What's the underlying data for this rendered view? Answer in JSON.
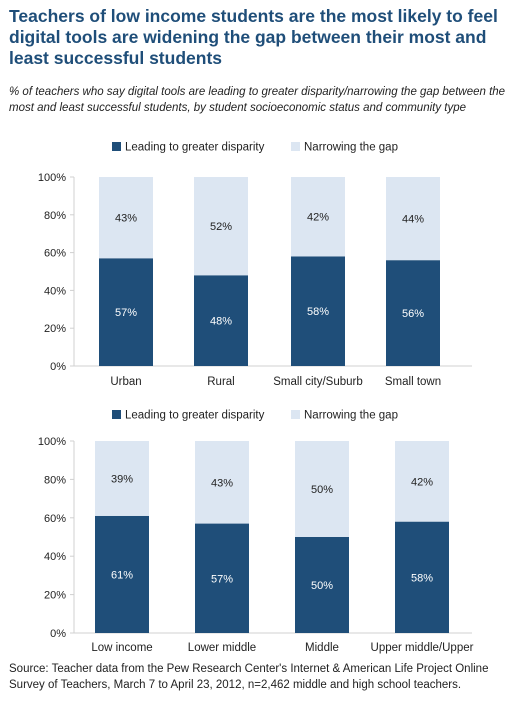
{
  "title": "Teachers of low income students are the most likely to feel digital tools are widening the gap between their most and least successful students",
  "subtitle": "% of teachers who say digital tools are leading to greater disparity/narrowing the gap between the most and least successful students, by student socioeconomic status and community type",
  "source": "Source: Teacher data from the Pew Research Center's Internet & American Life Project Online Survey of Teachers, March 7 to April 23, 2012, n=2,462 middle and high school teachers.",
  "colors": {
    "disparity": "#1f4e79",
    "narrowing": "#dce6f2"
  },
  "chart_data": [
    {
      "type": "bar",
      "stacked": true,
      "categories": [
        "Urban",
        "Rural",
        "Small city/Suburb",
        "Small town"
      ],
      "series": [
        {
          "name": "Leading to greater disparity",
          "values": [
            57,
            48,
            58,
            56
          ]
        },
        {
          "name": "Narrowing the gap",
          "values": [
            43,
            52,
            42,
            44
          ]
        }
      ],
      "yticks": [
        "0%",
        "20%",
        "40%",
        "60%",
        "80%",
        "100%"
      ],
      "ylim": [
        0,
        100
      ],
      "legend": "top"
    },
    {
      "type": "bar",
      "stacked": true,
      "categories": [
        "Low income",
        "Lower middle",
        "Middle",
        "Upper middle/Upper"
      ],
      "series": [
        {
          "name": "Leading to greater disparity",
          "values": [
            61,
            57,
            50,
            58
          ]
        },
        {
          "name": "Narrowing the gap",
          "values": [
            39,
            43,
            50,
            42
          ]
        }
      ],
      "yticks": [
        "0%",
        "20%",
        "40%",
        "60%",
        "80%",
        "100%"
      ],
      "ylim": [
        0,
        100
      ],
      "legend": "top"
    }
  ]
}
